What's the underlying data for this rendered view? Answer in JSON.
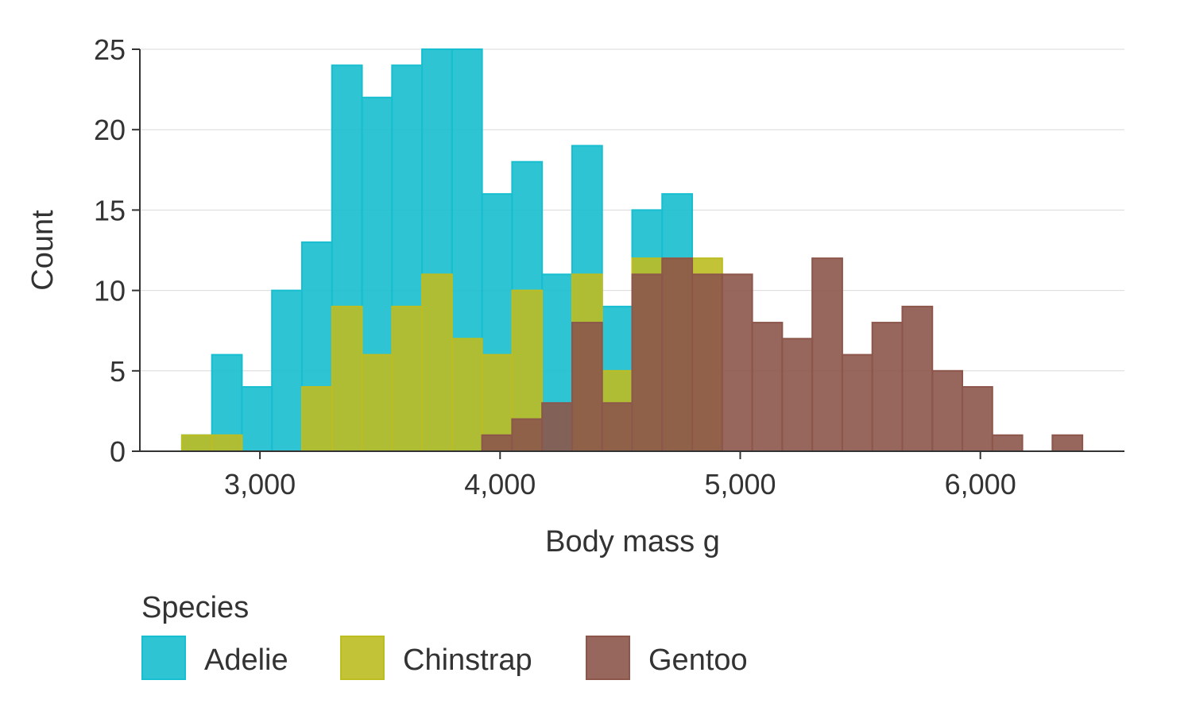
{
  "chart_data": {
    "type": "bar",
    "subtype": "overlaid-histogram",
    "xlabel": "Body mass g",
    "ylabel": "Count",
    "xlim": [
      2500,
      6600
    ],
    "ylim": [
      0,
      25
    ],
    "x_ticks": [
      3000,
      4000,
      5000,
      6000
    ],
    "x_tick_labels": [
      "3,000",
      "4,000",
      "5,000",
      "6,000"
    ],
    "y_ticks": [
      0,
      5,
      10,
      15,
      20,
      25
    ],
    "y_tick_labels": [
      "0",
      "5",
      "10",
      "15",
      "20",
      "25"
    ],
    "bin_width": 125,
    "bin_start": 2675,
    "grid": "horizontal",
    "legend": {
      "title": "Species",
      "placement": "bottom-left"
    },
    "series": [
      {
        "name": "Adelie",
        "color": "#17BECF",
        "values": [
          1,
          6,
          4,
          10,
          13,
          24,
          22,
          24,
          25,
          25,
          16,
          18,
          11,
          19,
          9,
          15,
          16,
          0,
          0,
          0,
          0,
          0,
          0,
          0,
          0,
          0,
          0,
          0,
          0,
          0
        ]
      },
      {
        "name": "Chinstrap",
        "color": "#BCBD22",
        "values": [
          1,
          1,
          0,
          0,
          4,
          9,
          6,
          9,
          11,
          7,
          6,
          10,
          0,
          11,
          5,
          12,
          12,
          12,
          0,
          0,
          0,
          0,
          0,
          0,
          0,
          0,
          0,
          0,
          0,
          0
        ]
      },
      {
        "name": "Gentoo",
        "color": "#8C564B",
        "values": [
          0,
          0,
          0,
          0,
          0,
          0,
          0,
          0,
          0,
          0,
          1,
          2,
          3,
          8,
          3,
          11,
          12,
          11,
          11,
          8,
          7,
          12,
          6,
          8,
          9,
          5,
          4,
          1,
          0,
          1
        ]
      }
    ]
  }
}
